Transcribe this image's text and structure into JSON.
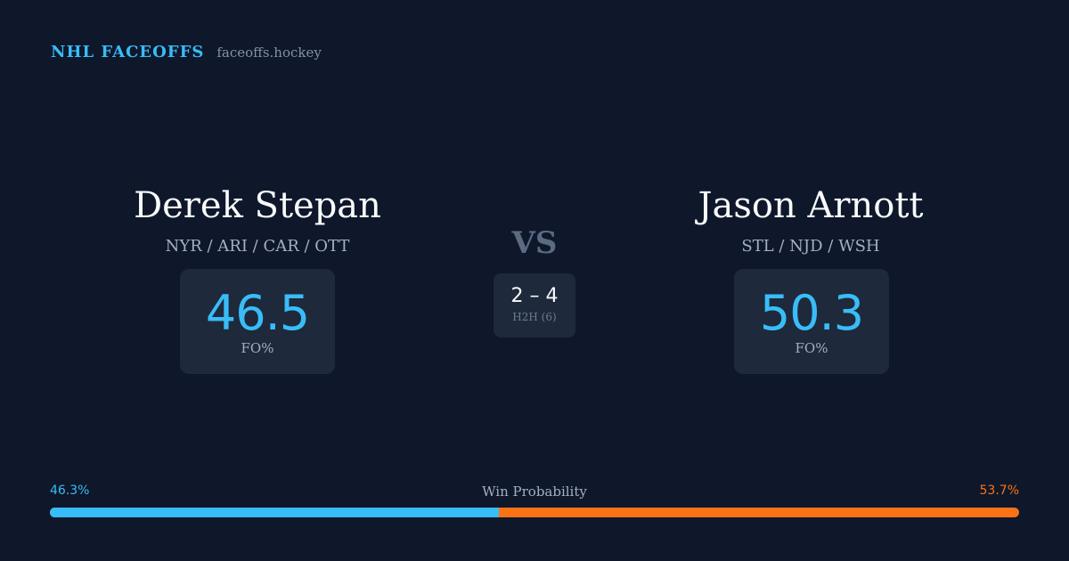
{
  "brand": {
    "name": "NHL FACEOFFS",
    "domain": "faceoffs.hockey"
  },
  "players": [
    {
      "name": "Derek Stepan",
      "teams": "NYR / ARI / CAR / OTT",
      "fo_value": "46.5",
      "fo_label": "FO%"
    },
    {
      "name": "Jason Arnott",
      "teams": "STL / NJD / WSH",
      "fo_value": "50.3",
      "fo_label": "FO%"
    }
  ],
  "vs_label": "VS",
  "h2h": {
    "score": "2 – 4",
    "label": "H2H (6)"
  },
  "win_probability": {
    "title": "Win Probability",
    "left_label": "46.3%",
    "right_label": "53.7%",
    "left_fraction": 0.463,
    "left_color": "#38bdf8",
    "right_color": "#f97316"
  }
}
